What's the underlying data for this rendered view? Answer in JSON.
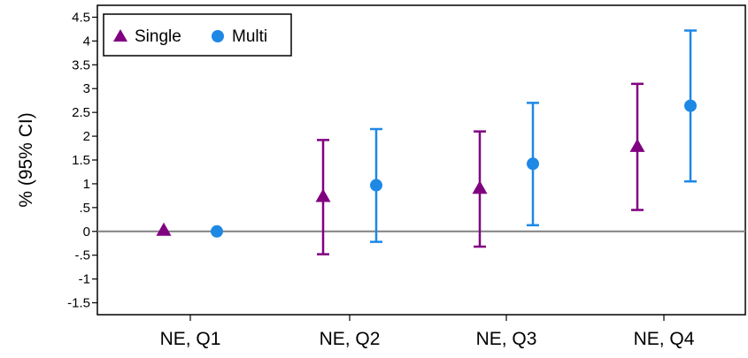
{
  "chart_data": {
    "type": "scatter",
    "title": "",
    "xlabel": "",
    "ylabel": "% (95% CI)",
    "categories": [
      "NE, Q1",
      "NE, Q2",
      "NE, Q3",
      "NE, Q4"
    ],
    "y_ticks": [
      "4.5",
      "4",
      "3.5",
      "3",
      "2.5",
      "2",
      "1.5",
      "1",
      ".5",
      "0",
      "-.5",
      "-1",
      "-1.5"
    ],
    "y_tick_values": [
      4.5,
      4,
      3.5,
      3,
      2.5,
      2,
      1.5,
      1,
      0.5,
      0,
      -0.5,
      -1,
      -1.5
    ],
    "ylim": [
      -1.75,
      4.75
    ],
    "reference_line": 0,
    "grid": false,
    "legend_position": "top-left",
    "series": [
      {
        "name": "Single",
        "marker": "triangle",
        "color": "#800080",
        "values": [
          0.02,
          0.73,
          0.9,
          1.78
        ],
        "lower": [
          null,
          -0.48,
          -0.32,
          0.45
        ],
        "upper": [
          null,
          1.92,
          2.1,
          3.1
        ]
      },
      {
        "name": "Multi",
        "marker": "circle",
        "color": "#1e88e5",
        "values": [
          0.0,
          0.97,
          1.42,
          2.64
        ],
        "lower": [
          null,
          -0.22,
          0.13,
          1.05
        ],
        "upper": [
          null,
          2.15,
          2.7,
          4.22
        ]
      }
    ]
  }
}
